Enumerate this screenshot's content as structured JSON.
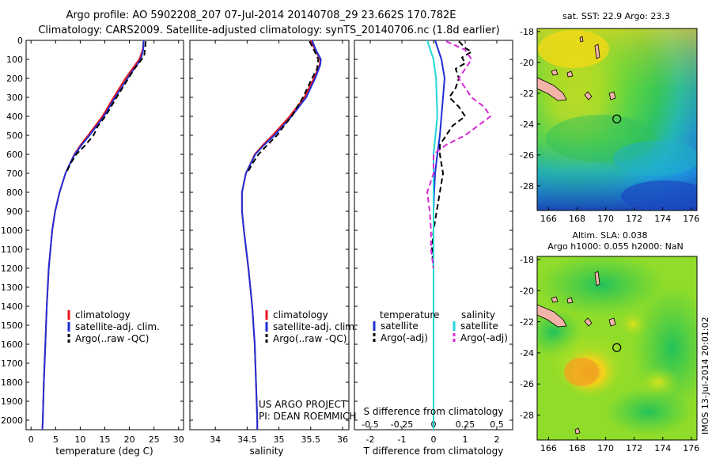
{
  "figure": {
    "title_line1": "Argo profile: AO 5902208_207 07-Jul-2014 20140708_29 23.662S 170.782E",
    "title_line2": "Climatology: CARS2009. Satellite-adjusted climatology: synTS_20140706.nc (1.8d earlier)",
    "credit_line1": "US ARGO PROJECT",
    "credit_line2": "PI: DEAN ROEMMICH",
    "stamp": "IMOS 13-Jul-2014 20:01:02"
  },
  "legend_ts": {
    "items": [
      {
        "label": "climatology",
        "color": "#e8151b"
      },
      {
        "label": "satellite-adj. clim.",
        "color": "#1f2fd6"
      },
      {
        "label": "Argo(..raw -QC)",
        "color": "#000000"
      }
    ]
  },
  "legend_diff": {
    "temp_header": "temperature",
    "sal_header": "salinity",
    "temp_items": [
      {
        "label": "satellite",
        "color": "#1f2fd6"
      },
      {
        "label": "Argo(-adj)",
        "color": "#000000"
      }
    ],
    "sal_items": [
      {
        "label": "satellite",
        "color": "#22d6dc"
      },
      {
        "label": "Argo(-adj)",
        "color": "#d62ad6"
      }
    ]
  },
  "maps": {
    "sst_title": "sat. SST: 22.9 Argo: 23.3",
    "sla_title_line1": "Altim. SLA: 0.038",
    "sla_title_line2": "Argo h1000: 0.055 h2000: NaN",
    "lon_ticks": [
      166,
      168,
      170,
      172,
      174,
      176
    ],
    "lat_ticks": [
      -18,
      -20,
      -22,
      -24,
      -26,
      -28
    ],
    "lon_range": [
      165.2,
      176.4
    ],
    "lat_range": [
      -29.6,
      -17.8
    ],
    "argo_position": {
      "lon": 170.782,
      "lat": -23.662
    }
  },
  "chart_data": [
    {
      "type": "line",
      "xlabel": "temperature (deg C)",
      "ylabel": "",
      "xlim": [
        -1,
        31
      ],
      "ylim": [
        2050,
        0
      ],
      "xticks": [
        0,
        5,
        10,
        15,
        20,
        25,
        30
      ],
      "yticks": [
        0,
        100,
        200,
        300,
        400,
        500,
        600,
        700,
        800,
        900,
        1000,
        1100,
        1200,
        1300,
        1400,
        1500,
        1600,
        1700,
        1800,
        1900,
        2000
      ],
      "series": [
        {
          "name": "climatology",
          "color": "#e8151b",
          "style": "solid",
          "depth": [
            0,
            50,
            100,
            200,
            300,
            400,
            500,
            550,
            600,
            650,
            700,
            800,
            900,
            1000,
            1200,
            1400,
            1600,
            1800,
            2000,
            2050
          ],
          "values": [
            22.9,
            22.7,
            22.0,
            19.2,
            16.8,
            14.5,
            11.6,
            10.1,
            8.8,
            7.9,
            7.0,
            5.8,
            4.9,
            4.3,
            3.6,
            3.2,
            2.9,
            2.6,
            2.4,
            2.3
          ]
        },
        {
          "name": "satellite-adj. clim.",
          "color": "#1f2fd6",
          "style": "solid",
          "depth": [
            0,
            50,
            100,
            200,
            300,
            400,
            500,
            550,
            600,
            650,
            700,
            800,
            900,
            1000,
            1200,
            1400,
            1600,
            1800,
            2000,
            2050
          ],
          "values": [
            22.9,
            22.8,
            22.3,
            19.6,
            17.1,
            14.8,
            11.9,
            10.3,
            8.9,
            7.9,
            7.0,
            5.8,
            4.9,
            4.3,
            3.6,
            3.2,
            2.9,
            2.6,
            2.4,
            2.3
          ]
        },
        {
          "name": "Argo(..raw -QC)",
          "color": "#000000",
          "style": "dashed",
          "depth": [
            5,
            40,
            80,
            100,
            150,
            200,
            300,
            400,
            450,
            500,
            550,
            600,
            650,
            700
          ],
          "values": [
            23.3,
            23.2,
            23.0,
            22.5,
            21.0,
            19.8,
            17.4,
            15.1,
            13.6,
            12.7,
            11.1,
            9.2,
            8.0,
            7.1
          ]
        }
      ]
    },
    {
      "type": "line",
      "xlabel": "salinity",
      "ylabel": "",
      "xlim": [
        33.6,
        36.1
      ],
      "ylim": [
        2050,
        0
      ],
      "xticks": [
        34,
        34.5,
        35,
        35.5,
        36
      ],
      "series": [
        {
          "name": "climatology",
          "color": "#e8151b",
          "style": "solid",
          "depth": [
            0,
            50,
            100,
            130,
            200,
            300,
            400,
            500,
            550,
            600,
            700,
            800,
            900,
            1000,
            1200,
            1400,
            1600,
            1800,
            2000,
            2050
          ],
          "values": [
            35.5,
            35.57,
            35.65,
            35.64,
            35.55,
            35.4,
            35.17,
            34.9,
            34.75,
            34.62,
            34.48,
            34.42,
            34.42,
            34.45,
            34.52,
            34.58,
            34.62,
            34.64,
            34.66,
            34.66
          ]
        },
        {
          "name": "satellite-adj. clim.",
          "color": "#1f2fd6",
          "style": "solid",
          "depth": [
            0,
            50,
            100,
            130,
            200,
            300,
            400,
            500,
            550,
            600,
            700,
            800,
            900,
            1000,
            1200,
            1400,
            1600,
            1800,
            2000,
            2050
          ],
          "values": [
            35.52,
            35.58,
            35.66,
            35.65,
            35.57,
            35.43,
            35.2,
            34.93,
            34.77,
            34.63,
            34.48,
            34.42,
            34.42,
            34.45,
            34.52,
            34.58,
            34.62,
            34.64,
            34.66,
            34.66
          ]
        },
        {
          "name": "Argo(..raw -QC)",
          "color": "#000000",
          "style": "dashed",
          "depth": [
            5,
            50,
            100,
            150,
            200,
            300,
            400,
            450,
            500,
            550,
            600,
            650,
            700
          ],
          "values": [
            35.48,
            35.55,
            35.62,
            35.6,
            35.52,
            35.38,
            35.2,
            35.08,
            34.97,
            34.82,
            34.68,
            34.58,
            34.5
          ]
        }
      ]
    },
    {
      "type": "line",
      "xlabel": "T difference from climatology",
      "xlabel2": "S difference from climatology",
      "ylabel": "",
      "xlim": [
        -2.5,
        2.5
      ],
      "ylim": [
        2050,
        0
      ],
      "xticks": [
        -2,
        -1,
        0,
        1,
        2
      ],
      "xticks_S": [
        -0.5,
        -0.25,
        0,
        0.25,
        0.5
      ],
      "series": [
        {
          "name": "temperature satellite",
          "color": "#1f2fd6",
          "style": "solid",
          "depth": [
            0,
            100,
            200,
            300,
            400,
            500,
            600,
            700,
            800,
            900,
            1000,
            1200,
            1400,
            1600,
            1800,
            2000
          ],
          "values": [
            0.05,
            0.25,
            0.35,
            0.3,
            0.25,
            0.2,
            0.12,
            0.05,
            0.02,
            0.0,
            0.0,
            0.0,
            0.0,
            0.0,
            0.0,
            0.0
          ]
        },
        {
          "name": "temperature Argo(-adj)",
          "color": "#000000",
          "style": "dashed",
          "depth": [
            5,
            40,
            60,
            90,
            120,
            150,
            200,
            250,
            300,
            350,
            400,
            450,
            500,
            550,
            600,
            700,
            800,
            900,
            1000,
            1100,
            1200,
            1300,
            1400,
            1500,
            1550
          ],
          "values": [
            0.8,
            1.0,
            1.2,
            0.9,
            1.0,
            0.7,
            0.8,
            0.7,
            0.5,
            0.8,
            1.0,
            0.6,
            0.4,
            0.2,
            0.2,
            0.3,
            0.2,
            0.1,
            0.0,
            -0.05,
            0.0,
            0.0,
            0.0,
            0.0,
            0.0
          ]
        },
        {
          "name": "salinity satellite",
          "color": "#22d6dc",
          "style": "solid",
          "depth": [
            0,
            100,
            200,
            400,
            600,
            800,
            1000,
            1200,
            1400,
            1600,
            1800,
            2000,
            2050
          ],
          "values": [
            -0.05,
            0.0,
            0.02,
            0.03,
            0.0,
            0.0,
            0.0,
            0.0,
            0.0,
            0.0,
            0.0,
            0.0,
            0.0
          ]
        },
        {
          "name": "salinity Argo(-adj)",
          "color": "#d62ad6",
          "style": "dashed",
          "depth": [
            5,
            50,
            100,
            150,
            200,
            250,
            300,
            350,
            400,
            450,
            500,
            550,
            600,
            700,
            800,
            900,
            1000,
            1100,
            1200
          ],
          "values": [
            0.1,
            0.25,
            0.3,
            0.25,
            0.2,
            0.25,
            0.3,
            0.4,
            0.45,
            0.35,
            0.25,
            0.1,
            0.0,
            0.0,
            -0.05,
            -0.03,
            -0.02,
            -0.02,
            0.0
          ]
        }
      ]
    }
  ]
}
